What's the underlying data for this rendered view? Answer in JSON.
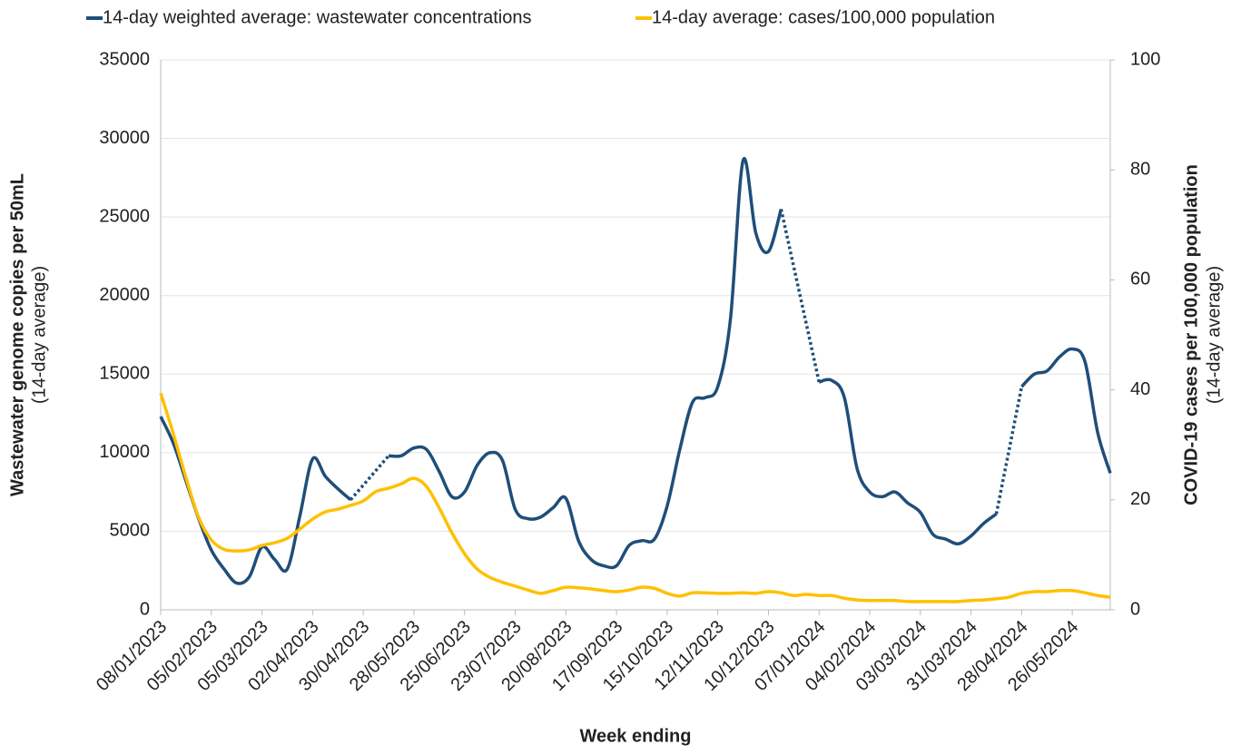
{
  "chart_data": {
    "type": "line",
    "x_label": "Week ending",
    "y_label": "Wastewater genome copies per 50mL",
    "y_label_sub": "(14-day average)",
    "y2_label": "COVID-19 cases per 100,000 population",
    "y2_label_sub": "(14-day average)",
    "categories": [
      "08/01/2023",
      null,
      null,
      null,
      "05/02/2023",
      null,
      null,
      null,
      "05/03/2023",
      null,
      null,
      null,
      "02/04/2023",
      null,
      null,
      null,
      "30/04/2023",
      null,
      null,
      null,
      "28/05/2023",
      null,
      null,
      null,
      "25/06/2023",
      null,
      null,
      null,
      "23/07/2023",
      null,
      null,
      null,
      "20/08/2023",
      null,
      null,
      null,
      "17/09/2023",
      null,
      null,
      null,
      "15/10/2023",
      null,
      null,
      null,
      "12/11/2023",
      null,
      null,
      null,
      "10/12/2023",
      null,
      null,
      null,
      "07/01/2024",
      null,
      null,
      null,
      "04/02/2024",
      null,
      null,
      null,
      "03/03/2024",
      null,
      null,
      null,
      "31/03/2024",
      null,
      null,
      null,
      "28/04/2024",
      null,
      null,
      null,
      "26/05/2024",
      null,
      null,
      null
    ],
    "series": [
      {
        "name": "14-day weighted average: wastewater concentrations",
        "color": "#1f4e79",
        "axis": "y",
        "values": [
          12300,
          10600,
          8200,
          5800,
          3800,
          2600,
          1700,
          2100,
          4000,
          3200,
          2600,
          6000,
          9600,
          8500,
          7700,
          7000,
          null,
          null,
          9800,
          9800,
          10300,
          10200,
          8800,
          7200,
          7500,
          9200,
          10000,
          9500,
          6400,
          5800,
          5900,
          6500,
          7100,
          4400,
          3200,
          2800,
          2800,
          4100,
          4400,
          4500,
          6600,
          10200,
          13200,
          13500,
          14200,
          18500,
          28600,
          24000,
          22800,
          25500,
          null,
          null,
          14500,
          14600,
          13500,
          9000,
          7500,
          7200,
          7500,
          6800,
          6200,
          4800,
          4500,
          4200,
          4700,
          5500,
          6100,
          null,
          14200,
          15000,
          15200,
          16100,
          16600,
          15800,
          11300,
          8700
        ]
      },
      {
        "name": "14-day average: cases/100,000 population",
        "color": "#ffc000",
        "axis": "y2",
        "values": [
          39.4,
          32,
          24,
          16.8,
          12.7,
          11,
          10.7,
          10.9,
          11.7,
          12.2,
          13,
          14.7,
          16.5,
          17.8,
          18.3,
          19,
          19.8,
          21.5,
          22.1,
          22.9,
          23.9,
          22.4,
          18.5,
          14,
          10.2,
          7.4,
          5.9,
          5,
          4.3,
          3.6,
          3,
          3.5,
          4.1,
          4,
          3.8,
          3.5,
          3.3,
          3.6,
          4.1,
          3.9,
          3,
          2.5,
          3.1,
          3.1,
          3,
          3,
          3.1,
          3,
          3.3,
          3.1,
          2.6,
          2.8,
          2.6,
          2.6,
          2.1,
          1.8,
          1.7,
          1.7,
          1.7,
          1.5,
          1.5,
          1.5,
          1.5,
          1.5,
          1.7,
          1.8,
          2,
          2.3,
          3,
          3.3,
          3.3,
          3.5,
          3.5,
          3.1,
          2.6,
          2.3
        ]
      }
    ],
    "ylim": [
      0,
      35000
    ],
    "yticks": [
      0,
      5000,
      10000,
      15000,
      20000,
      25000,
      30000,
      35000
    ],
    "y2lim": [
      0,
      100
    ],
    "y2ticks": [
      0,
      20,
      40,
      60,
      80,
      100
    ],
    "grid": true
  }
}
